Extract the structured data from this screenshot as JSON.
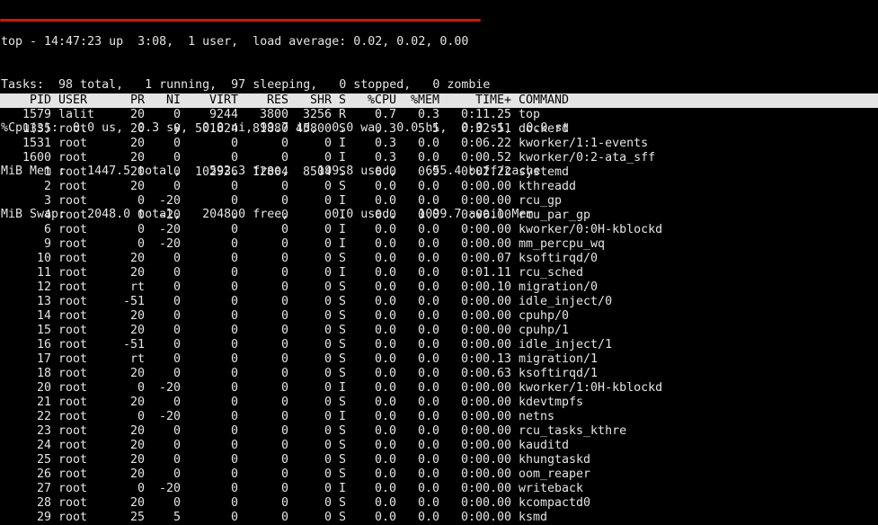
{
  "colors": {
    "background": "#000000",
    "foreground": "#e4e4e4",
    "header_background": "#e4e4e4",
    "header_text": "#000000",
    "annotation_red": "#dd1100"
  },
  "summary": {
    "lines": [
      "top - 14:47:23 up  3:08,  1 user,  load average: 0.02, 0.02, 0.00",
      "Tasks:  98 total,   1 running,  97 sleeping,   0 stopped,   0 zombie",
      "%Cpu(s):  0.0 us,  0.3 sy,  0.0 ni, 99.7 id,  0.0 wa,  0.0 hi,  0.0 si,  0.0 st",
      "MiB Mem :   1447.5 total,    592.3 free,    199.8 used,    655.4 buff/cache",
      "MiB Swap:   2048.0 total,   2048.0 free,      0.0 used.   1099.7 avail Mem"
    ]
  },
  "table": {
    "columns": [
      "PID",
      "USER",
      "PR",
      "NI",
      "VIRT",
      "RES",
      "SHR",
      "S",
      "%CPU",
      "%MEM",
      "TIME+",
      "COMMAND"
    ],
    "column_keys": [
      "pid",
      "user",
      "pr",
      "ni",
      "virt",
      "res",
      "shr",
      "state",
      "cpu-percent",
      "mem-percent",
      "time-plus",
      "command"
    ],
    "rows": [
      [
        "1579",
        "lalit",
        "20",
        "0",
        "9244",
        "3800",
        "3256",
        "R",
        "0.7",
        "0.3",
        "0:11.25",
        "top"
      ],
      [
        "1335",
        "root",
        "20",
        "0",
        "501824",
        "81880",
        "45800",
        "S",
        "0.3",
        "5.5",
        "0:32.51",
        "dockerd"
      ],
      [
        "1531",
        "root",
        "20",
        "0",
        "0",
        "0",
        "0",
        "I",
        "0.3",
        "0.0",
        "0:06.22",
        "kworker/1:1-events"
      ],
      [
        "1600",
        "root",
        "20",
        "0",
        "0",
        "0",
        "0",
        "I",
        "0.3",
        "0.0",
        "0:00.52",
        "kworker/0:2-ata_sff"
      ],
      [
        "1",
        "root",
        "20",
        "0",
        "102936",
        "12804",
        "8504",
        "S",
        "0.0",
        "0.9",
        "0:02.22",
        "systemd"
      ],
      [
        "2",
        "root",
        "20",
        "0",
        "0",
        "0",
        "0",
        "S",
        "0.0",
        "0.0",
        "0:00.00",
        "kthreadd"
      ],
      [
        "3",
        "root",
        "0",
        "-20",
        "0",
        "0",
        "0",
        "I",
        "0.0",
        "0.0",
        "0:00.00",
        "rcu_gp"
      ],
      [
        "4",
        "root",
        "0",
        "-20",
        "0",
        "0",
        "0",
        "I",
        "0.0",
        "0.0",
        "0:00.00",
        "rcu_par_gp"
      ],
      [
        "6",
        "root",
        "0",
        "-20",
        "0",
        "0",
        "0",
        "I",
        "0.0",
        "0.0",
        "0:00.00",
        "kworker/0:0H-kblockd"
      ],
      [
        "9",
        "root",
        "0",
        "-20",
        "0",
        "0",
        "0",
        "I",
        "0.0",
        "0.0",
        "0:00.00",
        "mm_percpu_wq"
      ],
      [
        "10",
        "root",
        "20",
        "0",
        "0",
        "0",
        "0",
        "S",
        "0.0",
        "0.0",
        "0:00.07",
        "ksoftirqd/0"
      ],
      [
        "11",
        "root",
        "20",
        "0",
        "0",
        "0",
        "0",
        "I",
        "0.0",
        "0.0",
        "0:01.11",
        "rcu_sched"
      ],
      [
        "12",
        "root",
        "rt",
        "0",
        "0",
        "0",
        "0",
        "S",
        "0.0",
        "0.0",
        "0:00.10",
        "migration/0"
      ],
      [
        "13",
        "root",
        "-51",
        "0",
        "0",
        "0",
        "0",
        "S",
        "0.0",
        "0.0",
        "0:00.00",
        "idle_inject/0"
      ],
      [
        "14",
        "root",
        "20",
        "0",
        "0",
        "0",
        "0",
        "S",
        "0.0",
        "0.0",
        "0:00.00",
        "cpuhp/0"
      ],
      [
        "15",
        "root",
        "20",
        "0",
        "0",
        "0",
        "0",
        "S",
        "0.0",
        "0.0",
        "0:00.00",
        "cpuhp/1"
      ],
      [
        "16",
        "root",
        "-51",
        "0",
        "0",
        "0",
        "0",
        "S",
        "0.0",
        "0.0",
        "0:00.00",
        "idle_inject/1"
      ],
      [
        "17",
        "root",
        "rt",
        "0",
        "0",
        "0",
        "0",
        "S",
        "0.0",
        "0.0",
        "0:00.13",
        "migration/1"
      ],
      [
        "18",
        "root",
        "20",
        "0",
        "0",
        "0",
        "0",
        "S",
        "0.0",
        "0.0",
        "0:00.63",
        "ksoftirqd/1"
      ],
      [
        "20",
        "root",
        "0",
        "-20",
        "0",
        "0",
        "0",
        "I",
        "0.0",
        "0.0",
        "0:00.00",
        "kworker/1:0H-kblockd"
      ],
      [
        "21",
        "root",
        "20",
        "0",
        "0",
        "0",
        "0",
        "S",
        "0.0",
        "0.0",
        "0:00.00",
        "kdevtmpfs"
      ],
      [
        "22",
        "root",
        "0",
        "-20",
        "0",
        "0",
        "0",
        "I",
        "0.0",
        "0.0",
        "0:00.00",
        "netns"
      ],
      [
        "23",
        "root",
        "20",
        "0",
        "0",
        "0",
        "0",
        "S",
        "0.0",
        "0.0",
        "0:00.00",
        "rcu_tasks_kthre"
      ],
      [
        "24",
        "root",
        "20",
        "0",
        "0",
        "0",
        "0",
        "S",
        "0.0",
        "0.0",
        "0:00.00",
        "kauditd"
      ],
      [
        "25",
        "root",
        "20",
        "0",
        "0",
        "0",
        "0",
        "S",
        "0.0",
        "0.0",
        "0:00.00",
        "khungtaskd"
      ],
      [
        "26",
        "root",
        "20",
        "0",
        "0",
        "0",
        "0",
        "S",
        "0.0",
        "0.0",
        "0:00.00",
        "oom_reaper"
      ],
      [
        "27",
        "root",
        "0",
        "-20",
        "0",
        "0",
        "0",
        "I",
        "0.0",
        "0.0",
        "0:00.00",
        "writeback"
      ],
      [
        "28",
        "root",
        "20",
        "0",
        "0",
        "0",
        "0",
        "S",
        "0.0",
        "0.0",
        "0:00.00",
        "kcompactd0"
      ],
      [
        "29",
        "root",
        "25",
        "5",
        "0",
        "0",
        "0",
        "S",
        "0.0",
        "0.0",
        "0:00.00",
        "ksmd"
      ]
    ]
  }
}
